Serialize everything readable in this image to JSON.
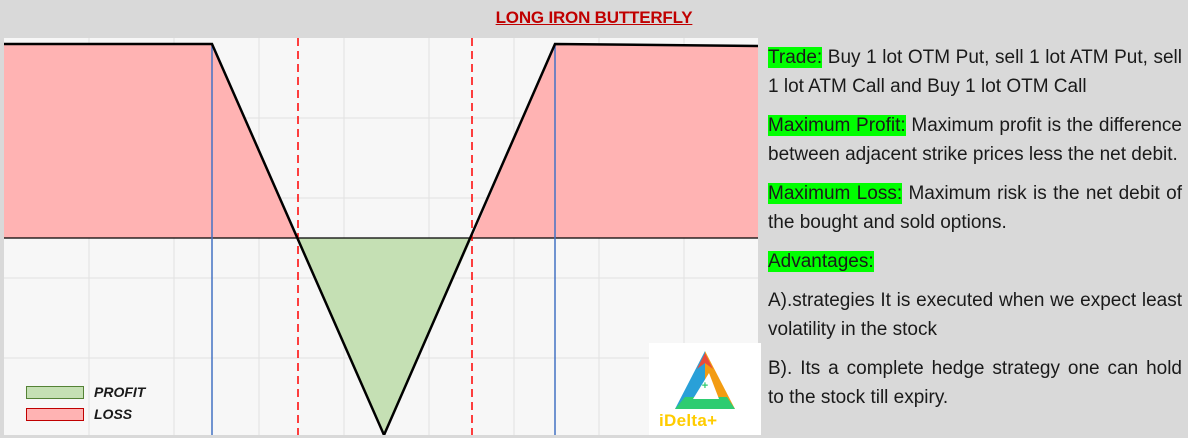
{
  "title": "LONG IRON BUTTERFLY",
  "legend": {
    "profit_label": "PROFIT",
    "loss_label": "LOSS"
  },
  "logo": {
    "name": "iDelta+"
  },
  "colors": {
    "title": "#c00000",
    "profit_fill": "#c5e0b4",
    "loss_fill": "#ffb3b3",
    "payoff_line": "#000000",
    "strike_line": "#4472c4",
    "breakeven_line": "#ff0000",
    "highlight": "#00ff00"
  },
  "sections": {
    "trade": {
      "heading": "Trade:",
      "text": " Buy 1 lot OTM Put, sell 1 lot ATM Put, sell 1 lot ATM Call and Buy 1 lot OTM Call"
    },
    "max_profit": {
      "heading": "Maximum Profit:",
      "text": " Maximum profit is the difference between adjacent strike prices less the net debit."
    },
    "max_loss": {
      "heading": "Maximum Loss:",
      "text": " Maximum risk is the net debit of the bought and sold options."
    },
    "advantages": {
      "heading": "Advantages:",
      "item_a": "A).strategies It is executed when we expect least volatility in the stock",
      "item_b": "B). Its a complete hedge strategy one can hold to the stock till expiry."
    }
  }
}
